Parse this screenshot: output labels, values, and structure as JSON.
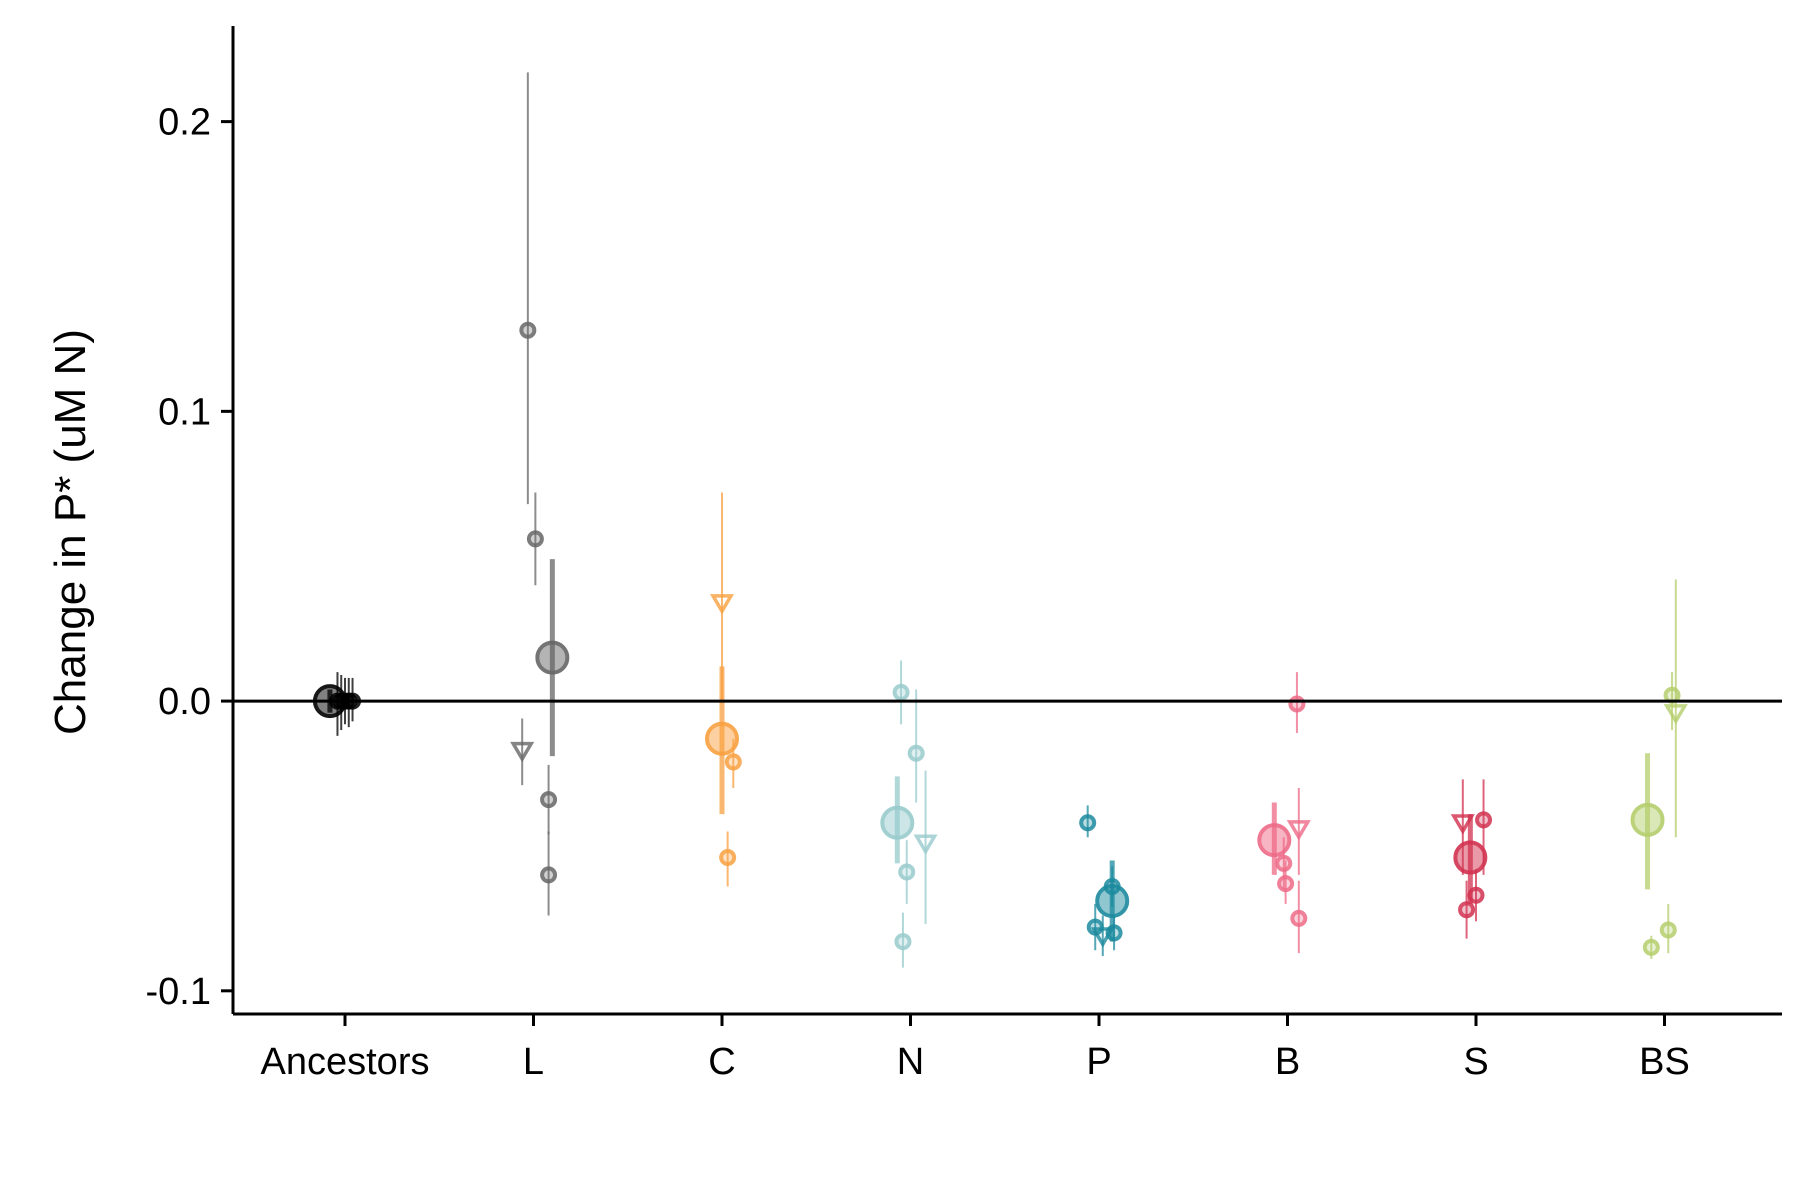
{
  "chart_data": {
    "type": "scatter",
    "title": "",
    "xlabel": "",
    "ylabel": "Change in P* (uM N)",
    "ylim": [
      -0.108,
      0.233
    ],
    "yticks": [
      -0.1,
      0.0,
      0.1,
      0.2
    ],
    "ytick_labels": [
      "-0.1",
      "0.0",
      "0.1",
      "0.2"
    ],
    "categories": [
      "Ancestors",
      "L",
      "C",
      "N",
      "P",
      "B",
      "S",
      "BS"
    ],
    "reference_line": 0.0,
    "grid": false,
    "legend": "none",
    "groups": [
      {
        "category": "Ancestors",
        "color": "#000000",
        "mean": {
          "offset": -0.08,
          "y": 0.0,
          "lo": -0.004,
          "hi": 0.004
        },
        "points": [
          {
            "offset": -0.04,
            "y": 0.0,
            "lo": -0.012,
            "hi": 0.01,
            "shape": "circle"
          },
          {
            "offset": -0.02,
            "y": 0.0,
            "lo": -0.01,
            "hi": 0.009,
            "shape": "circle"
          },
          {
            "offset": 0.0,
            "y": 0.0,
            "lo": -0.008,
            "hi": 0.008,
            "shape": "circle"
          },
          {
            "offset": 0.02,
            "y": 0.0,
            "lo": -0.009,
            "hi": 0.008,
            "shape": "circle"
          },
          {
            "offset": 0.04,
            "y": 0.0,
            "lo": -0.007,
            "hi": 0.008,
            "shape": "circle"
          }
        ]
      },
      {
        "category": "L",
        "color": "#666666",
        "mean": {
          "offset": 0.1,
          "y": 0.015,
          "lo": -0.019,
          "hi": 0.049
        },
        "points": [
          {
            "offset": -0.06,
            "y": -0.017,
            "lo": -0.029,
            "hi": -0.006,
            "shape": "triangle"
          },
          {
            "offset": -0.03,
            "y": 0.128,
            "lo": 0.068,
            "hi": 0.217,
            "shape": "circle"
          },
          {
            "offset": 0.01,
            "y": 0.056,
            "lo": 0.04,
            "hi": 0.072,
            "shape": "circle"
          },
          {
            "offset": 0.08,
            "y": -0.034,
            "lo": -0.046,
            "hi": -0.022,
            "shape": "circle"
          },
          {
            "offset": 0.08,
            "y": -0.06,
            "lo": -0.074,
            "hi": -0.045,
            "shape": "circle"
          }
        ]
      },
      {
        "category": "C",
        "color": "#F9A03F",
        "mean": {
          "offset": 0.0,
          "y": -0.013,
          "lo": -0.039,
          "hi": 0.012
        },
        "points": [
          {
            "offset": 0.0,
            "y": 0.034,
            "lo": 0.0,
            "hi": 0.072,
            "shape": "triangle"
          },
          {
            "offset": 0.06,
            "y": -0.021,
            "lo": -0.03,
            "hi": -0.013,
            "shape": "circle"
          },
          {
            "offset": 0.03,
            "y": -0.054,
            "lo": -0.064,
            "hi": -0.045,
            "shape": "circle"
          }
        ]
      },
      {
        "category": "N",
        "color": "#98CBCD",
        "mean": {
          "offset": -0.07,
          "y": -0.042,
          "lo": -0.056,
          "hi": -0.026
        },
        "points": [
          {
            "offset": -0.05,
            "y": 0.003,
            "lo": -0.008,
            "hi": 0.014,
            "shape": "circle"
          },
          {
            "offset": 0.03,
            "y": -0.018,
            "lo": -0.035,
            "hi": 0.004,
            "shape": "circle"
          },
          {
            "offset": 0.08,
            "y": -0.049,
            "lo": -0.077,
            "hi": -0.024,
            "shape": "triangle"
          },
          {
            "offset": -0.02,
            "y": -0.059,
            "lo": -0.07,
            "hi": -0.048,
            "shape": "circle"
          },
          {
            "offset": -0.04,
            "y": -0.083,
            "lo": -0.092,
            "hi": -0.073,
            "shape": "circle"
          }
        ]
      },
      {
        "category": "P",
        "color": "#1B8A9E",
        "mean": {
          "offset": 0.07,
          "y": -0.069,
          "lo": -0.083,
          "hi": -0.055
        },
        "points": [
          {
            "offset": -0.06,
            "y": -0.042,
            "lo": -0.047,
            "hi": -0.036,
            "shape": "circle"
          },
          {
            "offset": -0.02,
            "y": -0.078,
            "lo": -0.086,
            "hi": -0.07,
            "shape": "circle"
          },
          {
            "offset": 0.02,
            "y": -0.081,
            "lo": -0.088,
            "hi": -0.074,
            "shape": "triangle"
          },
          {
            "offset": 0.08,
            "y": -0.08,
            "lo": -0.086,
            "hi": -0.074,
            "shape": "circle"
          },
          {
            "offset": 0.07,
            "y": -0.064,
            "lo": -0.071,
            "hi": -0.057,
            "shape": "circle"
          }
        ]
      },
      {
        "category": "B",
        "color": "#EE6A87",
        "mean": {
          "offset": -0.07,
          "y": -0.048,
          "lo": -0.06,
          "hi": -0.035
        },
        "points": [
          {
            "offset": 0.05,
            "y": -0.001,
            "lo": -0.011,
            "hi": 0.01,
            "shape": "circle"
          },
          {
            "offset": 0.06,
            "y": -0.044,
            "lo": -0.06,
            "hi": -0.03,
            "shape": "triangle"
          },
          {
            "offset": -0.02,
            "y": -0.056,
            "lo": -0.065,
            "hi": -0.047,
            "shape": "circle"
          },
          {
            "offset": -0.01,
            "y": -0.063,
            "lo": -0.07,
            "hi": -0.055,
            "shape": "circle"
          },
          {
            "offset": 0.06,
            "y": -0.075,
            "lo": -0.087,
            "hi": -0.062,
            "shape": "circle"
          }
        ]
      },
      {
        "category": "S",
        "color": "#D2314F",
        "mean": {
          "offset": -0.03,
          "y": -0.054,
          "lo": -0.07,
          "hi": -0.039
        },
        "points": [
          {
            "offset": -0.07,
            "y": -0.042,
            "lo": -0.06,
            "hi": -0.027,
            "shape": "triangle"
          },
          {
            "offset": 0.04,
            "y": -0.041,
            "lo": -0.06,
            "hi": -0.027,
            "shape": "circle"
          },
          {
            "offset": 0.0,
            "y": -0.067,
            "lo": -0.076,
            "hi": -0.058,
            "shape": "circle"
          },
          {
            "offset": -0.05,
            "y": -0.072,
            "lo": -0.082,
            "hi": -0.062,
            "shape": "circle"
          }
        ]
      },
      {
        "category": "BS",
        "color": "#B5CE6C",
        "mean": {
          "offset": -0.09,
          "y": -0.041,
          "lo": -0.065,
          "hi": -0.018
        },
        "points": [
          {
            "offset": 0.04,
            "y": 0.002,
            "lo": -0.01,
            "hi": 0.01,
            "shape": "circle"
          },
          {
            "offset": 0.06,
            "y": -0.004,
            "lo": -0.047,
            "hi": 0.042,
            "shape": "triangle"
          },
          {
            "offset": 0.02,
            "y": -0.079,
            "lo": -0.087,
            "hi": -0.07,
            "shape": "circle"
          },
          {
            "offset": -0.07,
            "y": -0.085,
            "lo": -0.089,
            "hi": -0.081,
            "shape": "circle"
          }
        ]
      }
    ]
  }
}
